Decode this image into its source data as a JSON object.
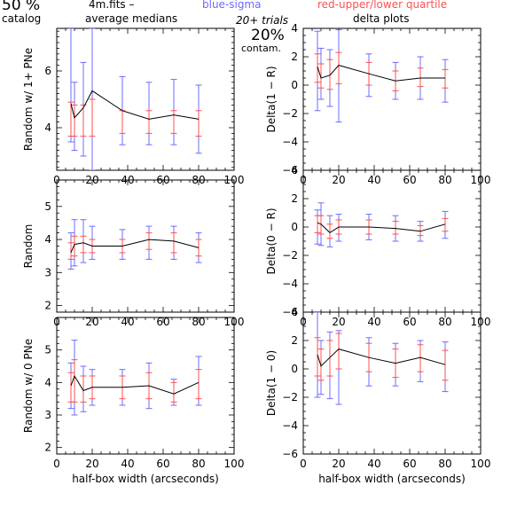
{
  "header": {
    "pct": "50 %",
    "catalog": "catalog",
    "file": "4m.fits  –",
    "avg": "average medians",
    "blue": "blue-sigma",
    "red": "red-upper/lower quartile",
    "trials": "20+ trials",
    "delta": "delta plots",
    "contam_pct": "20%",
    "contam": "contam."
  },
  "colors": {
    "blue": "#6c6cff",
    "red": "#ff5050",
    "line": "#000000"
  },
  "chart_data": [
    {
      "type": "line",
      "panel": "left-1",
      "ylabel": "Random w/ 1+ PNe",
      "xlabel": "",
      "xlim": [
        0,
        100
      ],
      "ylim": [
        2.5,
        7.5
      ],
      "xticks": [
        0,
        20,
        40,
        60,
        80,
        100
      ],
      "yticks": [
        4,
        6
      ],
      "x": [
        8,
        10,
        15,
        20,
        37,
        52,
        66,
        80
      ],
      "y": [
        4.85,
        4.35,
        4.7,
        5.3,
        4.6,
        4.3,
        4.45,
        4.3
      ],
      "sigma_low": [
        3.5,
        3.2,
        3.0,
        2.5,
        3.4,
        3.4,
        3.4,
        3.1
      ],
      "sigma_high": [
        7.5,
        5.6,
        6.3,
        7.5,
        5.8,
        5.6,
        5.7,
        5.5
      ],
      "q_low": [
        3.7,
        3.7,
        3.7,
        3.7,
        3.8,
        3.8,
        3.8,
        3.7
      ],
      "q_high": [
        4.9,
        4.8,
        4.8,
        5.0,
        4.6,
        4.6,
        4.6,
        4.6
      ]
    },
    {
      "type": "line",
      "panel": "left-2",
      "ylabel": "Random",
      "xlabel": "",
      "xlim": [
        0,
        100
      ],
      "ylim": [
        1.8,
        5.8
      ],
      "xticks": [
        0,
        20,
        40,
        60,
        80,
        100
      ],
      "yticks": [
        2,
        3,
        4,
        5
      ],
      "x": [
        8,
        10,
        15,
        20,
        37,
        52,
        66,
        80
      ],
      "y": [
        3.6,
        3.85,
        3.9,
        3.8,
        3.8,
        4.0,
        3.95,
        3.75
      ],
      "sigma_low": [
        3.1,
        3.2,
        3.3,
        3.4,
        3.4,
        3.4,
        3.4,
        3.3
      ],
      "sigma_high": [
        4.2,
        4.6,
        4.6,
        4.4,
        4.3,
        4.4,
        4.4,
        4.2
      ],
      "q_low": [
        3.4,
        3.5,
        3.6,
        3.6,
        3.6,
        3.7,
        3.6,
        3.5
      ],
      "q_high": [
        3.9,
        4.1,
        4.1,
        4.0,
        4.0,
        4.2,
        4.2,
        4.0
      ]
    },
    {
      "type": "line",
      "panel": "left-3",
      "ylabel": "Random w/ 0 PNe",
      "xlabel": "half-box width (arcseconds)",
      "xlim": [
        0,
        100
      ],
      "ylim": [
        1.8,
        6.0
      ],
      "xticks": [
        0,
        20,
        40,
        60,
        80,
        100
      ],
      "yticks": [
        2,
        3,
        4,
        5
      ],
      "x": [
        8,
        10,
        15,
        20,
        37,
        52,
        66,
        80
      ],
      "y": [
        3.9,
        4.2,
        3.75,
        3.85,
        3.85,
        3.9,
        3.65,
        4.0
      ],
      "sigma_low": [
        3.2,
        3.0,
        3.1,
        3.3,
        3.3,
        3.2,
        3.3,
        3.3
      ],
      "sigma_high": [
        4.6,
        5.3,
        4.5,
        4.4,
        4.4,
        4.6,
        4.1,
        4.8
      ],
      "q_low": [
        3.4,
        3.4,
        3.4,
        3.5,
        3.5,
        3.5,
        3.4,
        3.5
      ],
      "q_high": [
        4.3,
        4.7,
        4.2,
        4.2,
        4.2,
        4.3,
        4.0,
        4.4
      ]
    },
    {
      "type": "line",
      "panel": "right-1",
      "ylabel": "Delta(1 − R)",
      "xlabel": "",
      "xlim": [
        0,
        100
      ],
      "ylim": [
        -6,
        4
      ],
      "xticks": [
        0,
        20,
        40,
        60,
        80,
        100
      ],
      "yticks": [
        -6,
        -4,
        -2,
        0,
        2,
        4
      ],
      "x": [
        8,
        10,
        15,
        20,
        37,
        52,
        66,
        80
      ],
      "y": [
        1.3,
        0.5,
        0.7,
        1.4,
        0.8,
        0.3,
        0.5,
        0.5
      ],
      "sigma_low": [
        -1.8,
        -1.0,
        -1.5,
        -2.6,
        -0.8,
        -1.0,
        -1.0,
        -1.2
      ],
      "sigma_high": [
        3.8,
        2.6,
        2.5,
        3.9,
        2.2,
        1.6,
        2.0,
        1.8
      ],
      "q_low": [
        0.2,
        -0.2,
        -0.3,
        0.1,
        0.0,
        -0.4,
        -0.1,
        -0.2
      ],
      "q_high": [
        2.2,
        1.5,
        1.8,
        2.3,
        1.6,
        1.0,
        1.2,
        1.1
      ]
    },
    {
      "type": "line",
      "panel": "right-2",
      "ylabel": "Delta(0 − R)",
      "xlabel": "",
      "xlim": [
        0,
        100
      ],
      "ylim": [
        -6,
        4
      ],
      "xticks": [
        0,
        20,
        40,
        60,
        80,
        100
      ],
      "yticks": [
        -6,
        -4,
        -2,
        0,
        2,
        4
      ],
      "x": [
        8,
        10,
        15,
        20,
        37,
        52,
        66,
        80
      ],
      "y": [
        0.3,
        0.2,
        -0.4,
        0.0,
        0.0,
        -0.1,
        -0.3,
        0.2
      ],
      "sigma_low": [
        -1.2,
        -1.3,
        -1.4,
        -1.0,
        -0.9,
        -1.0,
        -1.0,
        -0.8
      ],
      "sigma_high": [
        1.2,
        1.7,
        0.8,
        0.9,
        0.9,
        0.8,
        0.4,
        1.1
      ],
      "q_low": [
        -0.4,
        -0.5,
        -0.8,
        -0.5,
        -0.5,
        -0.5,
        -0.6,
        -0.3
      ],
      "q_high": [
        0.8,
        0.8,
        0.2,
        0.5,
        0.5,
        0.4,
        0.1,
        0.6
      ]
    },
    {
      "type": "line",
      "panel": "right-3",
      "ylabel": "Delta(1 − 0)",
      "xlabel": "half-box width (arcseconds)",
      "xlim": [
        0,
        100
      ],
      "ylim": [
        -6,
        4
      ],
      "xticks": [
        0,
        20,
        40,
        60,
        80,
        100
      ],
      "yticks": [
        -6,
        -4,
        -2,
        0,
        2,
        4
      ],
      "x": [
        8,
        10,
        15,
        20,
        37,
        52,
        66,
        80
      ],
      "y": [
        1.0,
        0.2,
        0.8,
        1.4,
        0.8,
        0.4,
        0.8,
        0.3
      ],
      "sigma_low": [
        -2.0,
        -1.8,
        -2.1,
        -2.5,
        -1.2,
        -1.2,
        -0.9,
        -1.6
      ],
      "sigma_high": [
        4.0,
        2.0,
        2.6,
        2.7,
        2.2,
        1.8,
        2.0,
        1.9
      ],
      "q_low": [
        -0.5,
        -0.8,
        -0.5,
        0.0,
        -0.2,
        -0.6,
        -0.2,
        -0.8
      ],
      "q_high": [
        2.2,
        1.4,
        2.0,
        2.5,
        1.8,
        1.4,
        1.7,
        1.3
      ]
    }
  ]
}
